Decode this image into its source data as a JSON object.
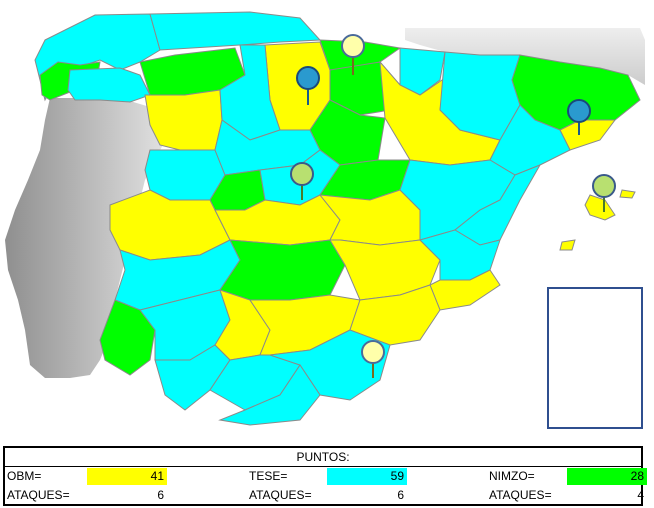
{
  "colors": {
    "obm": "#ffff00",
    "tese": "#00ffff",
    "nimzo": "#00ff00",
    "portugal": "#b8b8b8",
    "france": "#d9d9d9",
    "border": "#8a8a8a",
    "inset_frame": "#2f4f8f"
  },
  "pins": [
    {
      "name": "pin-yellow-north",
      "color": "yellow"
    },
    {
      "name": "pin-blue-north",
      "color": "blue"
    },
    {
      "name": "pin-blue-east",
      "color": "blue"
    },
    {
      "name": "pin-green-center",
      "color": "green"
    },
    {
      "name": "pin-green-islands",
      "color": "green"
    },
    {
      "name": "pin-yellow-south",
      "color": "yellow"
    }
  ],
  "score": {
    "title": "PUNTOS:",
    "obm_label": "OBM=",
    "obm_points": "41",
    "tese_label": "TESE=",
    "tese_points": "59",
    "nimzo_label": "NIMZO=",
    "nimzo_points": "28",
    "attacks_label": "ATAQUES=",
    "obm_attacks": "6",
    "tese_attacks": "6",
    "nimzo_attacks": "4"
  }
}
